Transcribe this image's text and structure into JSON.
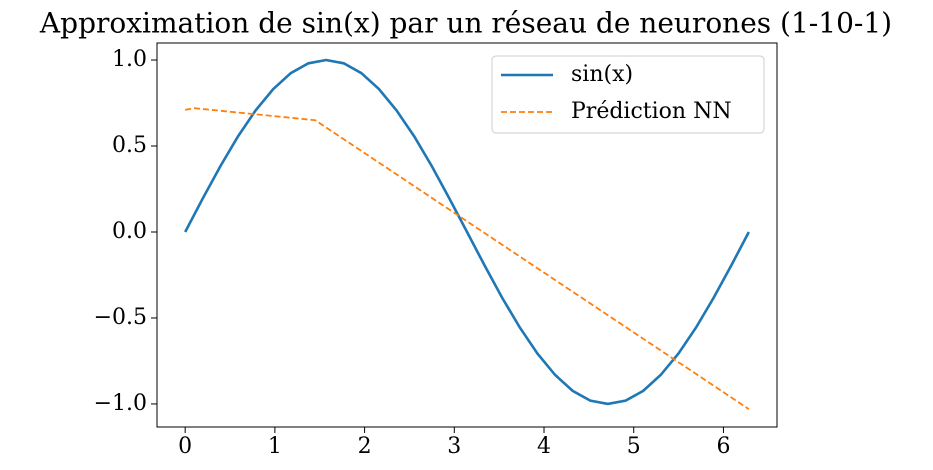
{
  "chart_data": {
    "type": "line",
    "title": "Approximation de sin(x) par un réseau de neurones (1-10-1)",
    "series": [
      {
        "name": "sin(x)",
        "color": "#1f77b4",
        "dashed": false,
        "x": [
          0,
          0.196,
          0.393,
          0.589,
          0.785,
          0.982,
          1.178,
          1.374,
          1.571,
          1.767,
          1.963,
          2.16,
          2.356,
          2.553,
          2.749,
          2.945,
          3.142,
          3.338,
          3.534,
          3.731,
          3.927,
          4.123,
          4.32,
          4.516,
          4.712,
          4.909,
          5.105,
          5.301,
          5.498,
          5.694,
          5.89,
          6.087,
          6.283
        ],
        "values": [
          0,
          0.195,
          0.383,
          0.556,
          0.707,
          0.831,
          0.924,
          0.981,
          1,
          0.981,
          0.924,
          0.831,
          0.707,
          0.556,
          0.383,
          0.195,
          0,
          -0.195,
          -0.383,
          -0.556,
          -0.707,
          -0.831,
          -0.924,
          -0.981,
          -1,
          -0.981,
          -0.924,
          -0.831,
          -0.707,
          -0.556,
          -0.383,
          -0.195,
          0
        ]
      },
      {
        "name": "Prédiction NN",
        "color": "#ff7f0e",
        "dashed": true,
        "x": [
          0,
          0.1,
          1.45,
          6.283
        ],
        "values": [
          0.71,
          0.72,
          0.65,
          -1.03
        ]
      }
    ],
    "xlim": [
      -0.314,
      6.597
    ],
    "ylim": [
      -1.134,
      1.099
    ],
    "xticks": [
      0,
      1,
      2,
      3,
      4,
      5,
      6
    ],
    "yticks": [
      {
        "value": -1,
        "label": "−1.0"
      },
      {
        "value": -0.5,
        "label": "−0.5"
      },
      {
        "value": 0,
        "label": "0.0"
      },
      {
        "value": 0.5,
        "label": "0.5"
      },
      {
        "value": 1,
        "label": "1.0"
      }
    ],
    "legend": "upper right",
    "grid": false
  }
}
